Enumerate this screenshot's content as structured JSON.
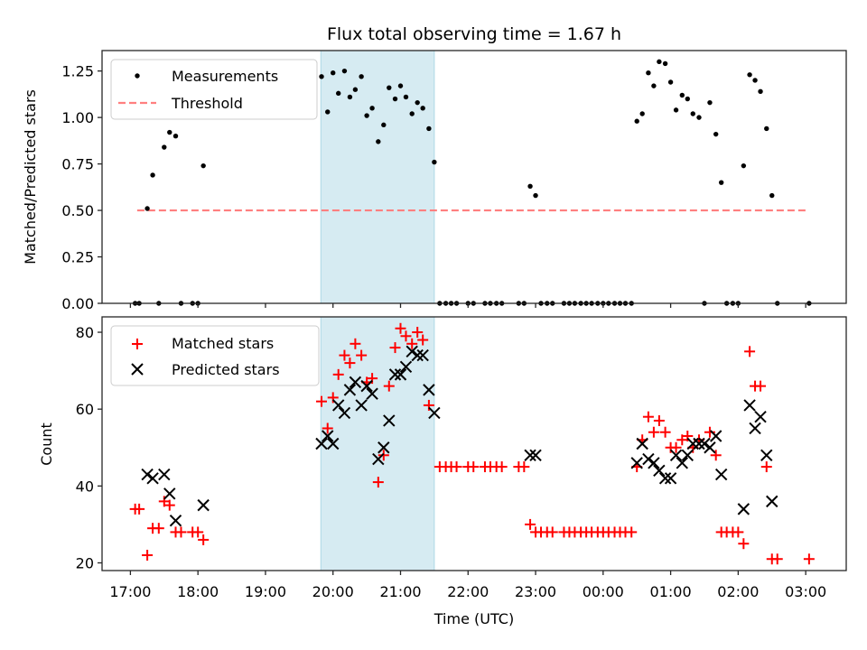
{
  "chart_data": [
    {
      "type": "scatter",
      "title": "Flux total observing time = 1.67 h",
      "xlabel": "",
      "ylabel": "Matched/Predicted stars",
      "xlim_hours": [
        16.58,
        27.6
      ],
      "ylim": [
        0,
        1.36
      ],
      "yticks": [
        0,
        0.25,
        0.5,
        0.75,
        1.0,
        1.25
      ],
      "ytick_labels": [
        "0.00",
        "0.25",
        "0.50",
        "0.75",
        "1.00",
        "1.25"
      ],
      "shaded_span_hours": [
        19.82,
        21.5
      ],
      "shaded_color": "#add8e6",
      "legend": {
        "placement": "upper-left",
        "entries": [
          "Measurements",
          "Threshold"
        ]
      },
      "threshold": {
        "name": "Threshold",
        "value": 0.5,
        "x_range_hours": [
          17.1,
          27.05
        ],
        "color": "#ff7f7f",
        "style": "dashed"
      },
      "series": [
        {
          "name": "Measurements",
          "marker": "dot",
          "color": "#000000",
          "points": [
            [
              17.07,
              0
            ],
            [
              17.13,
              0
            ],
            [
              17.25,
              0.51
            ],
            [
              17.33,
              0.69
            ],
            [
              17.42,
              0
            ],
            [
              17.5,
              0.84
            ],
            [
              17.58,
              0.92
            ],
            [
              17.67,
              0.9
            ],
            [
              17.75,
              0
            ],
            [
              17.92,
              0
            ],
            [
              18.0,
              0
            ],
            [
              18.08,
              0.74
            ],
            [
              19.83,
              1.22
            ],
            [
              19.92,
              1.03
            ],
            [
              20.0,
              1.24
            ],
            [
              20.08,
              1.13
            ],
            [
              20.17,
              1.25
            ],
            [
              20.25,
              1.11
            ],
            [
              20.33,
              1.15
            ],
            [
              20.42,
              1.22
            ],
            [
              20.5,
              1.01
            ],
            [
              20.58,
              1.05
            ],
            [
              20.67,
              0.87
            ],
            [
              20.75,
              0.96
            ],
            [
              20.83,
              1.16
            ],
            [
              20.92,
              1.1
            ],
            [
              21.0,
              1.17
            ],
            [
              21.08,
              1.11
            ],
            [
              21.17,
              1.02
            ],
            [
              21.25,
              1.08
            ],
            [
              21.33,
              1.05
            ],
            [
              21.42,
              0.94
            ],
            [
              21.5,
              0.76
            ],
            [
              21.58,
              0
            ],
            [
              21.67,
              0
            ],
            [
              21.75,
              0
            ],
            [
              21.83,
              0
            ],
            [
              22.0,
              0
            ],
            [
              22.08,
              0
            ],
            [
              22.25,
              0
            ],
            [
              22.33,
              0
            ],
            [
              22.42,
              0
            ],
            [
              22.5,
              0
            ],
            [
              22.75,
              0
            ],
            [
              22.83,
              0
            ],
            [
              22.92,
              0.63
            ],
            [
              23.0,
              0.58
            ],
            [
              23.08,
              0
            ],
            [
              23.17,
              0
            ],
            [
              23.25,
              0
            ],
            [
              23.42,
              0
            ],
            [
              23.5,
              0
            ],
            [
              23.58,
              0
            ],
            [
              23.67,
              0
            ],
            [
              23.75,
              0
            ],
            [
              23.83,
              0
            ],
            [
              23.92,
              0
            ],
            [
              24.0,
              0
            ],
            [
              24.08,
              0
            ],
            [
              24.17,
              0
            ],
            [
              24.25,
              0
            ],
            [
              24.33,
              0
            ],
            [
              24.42,
              0
            ],
            [
              24.5,
              0.98
            ],
            [
              24.58,
              1.02
            ],
            [
              24.67,
              1.24
            ],
            [
              24.75,
              1.17
            ],
            [
              24.83,
              1.3
            ],
            [
              24.92,
              1.29
            ],
            [
              25.0,
              1.19
            ],
            [
              25.08,
              1.04
            ],
            [
              25.17,
              1.12
            ],
            [
              25.25,
              1.1
            ],
            [
              25.33,
              1.02
            ],
            [
              25.42,
              1.0
            ],
            [
              25.58,
              1.08
            ],
            [
              25.67,
              0.91
            ],
            [
              25.75,
              0.65
            ],
            [
              25.5,
              0
            ],
            [
              25.83,
              0
            ],
            [
              25.92,
              0
            ],
            [
              26.0,
              0
            ],
            [
              26.08,
              0.74
            ],
            [
              26.17,
              1.23
            ],
            [
              26.25,
              1.2
            ],
            [
              26.33,
              1.14
            ],
            [
              26.42,
              0.94
            ],
            [
              26.5,
              0.58
            ],
            [
              26.58,
              0
            ],
            [
              27.05,
              0
            ]
          ]
        }
      ]
    },
    {
      "type": "scatter",
      "title": "",
      "xlabel": "Time (UTC)",
      "ylabel": "Count",
      "xlim_hours": [
        16.58,
        27.6
      ],
      "ylim": [
        18,
        84
      ],
      "yticks": [
        20,
        40,
        60,
        80
      ],
      "ytick_labels": [
        "20",
        "40",
        "60",
        "80"
      ],
      "xticks_hours": [
        17,
        18,
        19,
        20,
        21,
        22,
        23,
        24,
        25,
        26,
        27
      ],
      "xtick_labels": [
        "17:00",
        "18:00",
        "19:00",
        "20:00",
        "21:00",
        "22:00",
        "23:00",
        "00:00",
        "01:00",
        "02:00",
        "03:00"
      ],
      "shaded_span_hours": [
        19.82,
        21.5
      ],
      "shaded_color": "#add8e6",
      "legend": {
        "placement": "upper-left",
        "entries": [
          "Matched stars",
          "Predicted stars"
        ]
      },
      "series": [
        {
          "name": "Matched stars",
          "marker": "plus",
          "color": "#ff0000",
          "points": [
            [
              17.07,
              34
            ],
            [
              17.13,
              34
            ],
            [
              17.25,
              22
            ],
            [
              17.33,
              29
            ],
            [
              17.42,
              29
            ],
            [
              17.5,
              36
            ],
            [
              17.58,
              35
            ],
            [
              17.67,
              28
            ],
            [
              17.75,
              28
            ],
            [
              17.92,
              28
            ],
            [
              18.0,
              28
            ],
            [
              18.08,
              26
            ],
            [
              19.83,
              62
            ],
            [
              19.92,
              55
            ],
            [
              20.0,
              63
            ],
            [
              20.08,
              69
            ],
            [
              20.17,
              74
            ],
            [
              20.25,
              72
            ],
            [
              20.33,
              77
            ],
            [
              20.42,
              74
            ],
            [
              20.5,
              67
            ],
            [
              20.58,
              68
            ],
            [
              20.67,
              41
            ],
            [
              20.75,
              48
            ],
            [
              20.83,
              66
            ],
            [
              20.92,
              76
            ],
            [
              21.0,
              81
            ],
            [
              21.08,
              79
            ],
            [
              21.17,
              77
            ],
            [
              21.25,
              80
            ],
            [
              21.33,
              78
            ],
            [
              21.42,
              61
            ],
            [
              21.58,
              45
            ],
            [
              21.67,
              45
            ],
            [
              21.75,
              45
            ],
            [
              21.83,
              45
            ],
            [
              22.0,
              45
            ],
            [
              22.08,
              45
            ],
            [
              22.25,
              45
            ],
            [
              22.33,
              45
            ],
            [
              22.42,
              45
            ],
            [
              22.5,
              45
            ],
            [
              22.75,
              45
            ],
            [
              22.83,
              45
            ],
            [
              22.92,
              30
            ],
            [
              23.0,
              28
            ],
            [
              23.08,
              28
            ],
            [
              23.17,
              28
            ],
            [
              23.25,
              28
            ],
            [
              23.42,
              28
            ],
            [
              23.5,
              28
            ],
            [
              23.58,
              28
            ],
            [
              23.67,
              28
            ],
            [
              23.75,
              28
            ],
            [
              23.83,
              28
            ],
            [
              23.92,
              28
            ],
            [
              24.0,
              28
            ],
            [
              24.08,
              28
            ],
            [
              24.17,
              28
            ],
            [
              24.25,
              28
            ],
            [
              24.33,
              28
            ],
            [
              24.42,
              28
            ],
            [
              24.5,
              45
            ],
            [
              24.58,
              52
            ],
            [
              24.67,
              58
            ],
            [
              24.75,
              54
            ],
            [
              24.83,
              57
            ],
            [
              24.92,
              54
            ],
            [
              25.0,
              50
            ],
            [
              25.08,
              50
            ],
            [
              25.17,
              52
            ],
            [
              25.25,
              53
            ],
            [
              25.33,
              50
            ],
            [
              25.42,
              52
            ],
            [
              25.58,
              54
            ],
            [
              25.67,
              48
            ],
            [
              25.75,
              28
            ],
            [
              25.83,
              28
            ],
            [
              25.92,
              28
            ],
            [
              26.0,
              28
            ],
            [
              26.08,
              25
            ],
            [
              26.17,
              75
            ],
            [
              26.25,
              66
            ],
            [
              26.33,
              66
            ],
            [
              26.42,
              45
            ],
            [
              26.5,
              21
            ],
            [
              26.58,
              21
            ],
            [
              27.05,
              21
            ]
          ]
        },
        {
          "name": "Predicted stars",
          "marker": "x",
          "color": "#000000",
          "points": [
            [
              17.25,
              43
            ],
            [
              17.33,
              42
            ],
            [
              17.5,
              43
            ],
            [
              17.58,
              38
            ],
            [
              17.67,
              31
            ],
            [
              18.08,
              35
            ],
            [
              19.83,
              51
            ],
            [
              19.92,
              53
            ],
            [
              20.0,
              51
            ],
            [
              20.08,
              61
            ],
            [
              20.17,
              59
            ],
            [
              20.25,
              65
            ],
            [
              20.33,
              67
            ],
            [
              20.42,
              61
            ],
            [
              20.5,
              66
            ],
            [
              20.58,
              64
            ],
            [
              20.67,
              47
            ],
            [
              20.75,
              50
            ],
            [
              20.83,
              57
            ],
            [
              20.92,
              69
            ],
            [
              21.0,
              69
            ],
            [
              21.08,
              71
            ],
            [
              21.17,
              75
            ],
            [
              21.25,
              74
            ],
            [
              21.33,
              74
            ],
            [
              21.42,
              65
            ],
            [
              21.5,
              59
            ],
            [
              22.92,
              48
            ],
            [
              23.0,
              48
            ],
            [
              24.5,
              46
            ],
            [
              24.58,
              51
            ],
            [
              24.67,
              47
            ],
            [
              24.75,
              46
            ],
            [
              24.83,
              44
            ],
            [
              24.92,
              42
            ],
            [
              25.0,
              42
            ],
            [
              25.08,
              48
            ],
            [
              25.17,
              46
            ],
            [
              25.25,
              48
            ],
            [
              25.33,
              51
            ],
            [
              25.42,
              51
            ],
            [
              25.5,
              51
            ],
            [
              25.58,
              50
            ],
            [
              25.67,
              53
            ],
            [
              25.75,
              43
            ],
            [
              26.08,
              34
            ],
            [
              26.17,
              61
            ],
            [
              26.25,
              55
            ],
            [
              26.33,
              58
            ],
            [
              26.42,
              48
            ],
            [
              26.5,
              36
            ]
          ]
        }
      ]
    }
  ]
}
